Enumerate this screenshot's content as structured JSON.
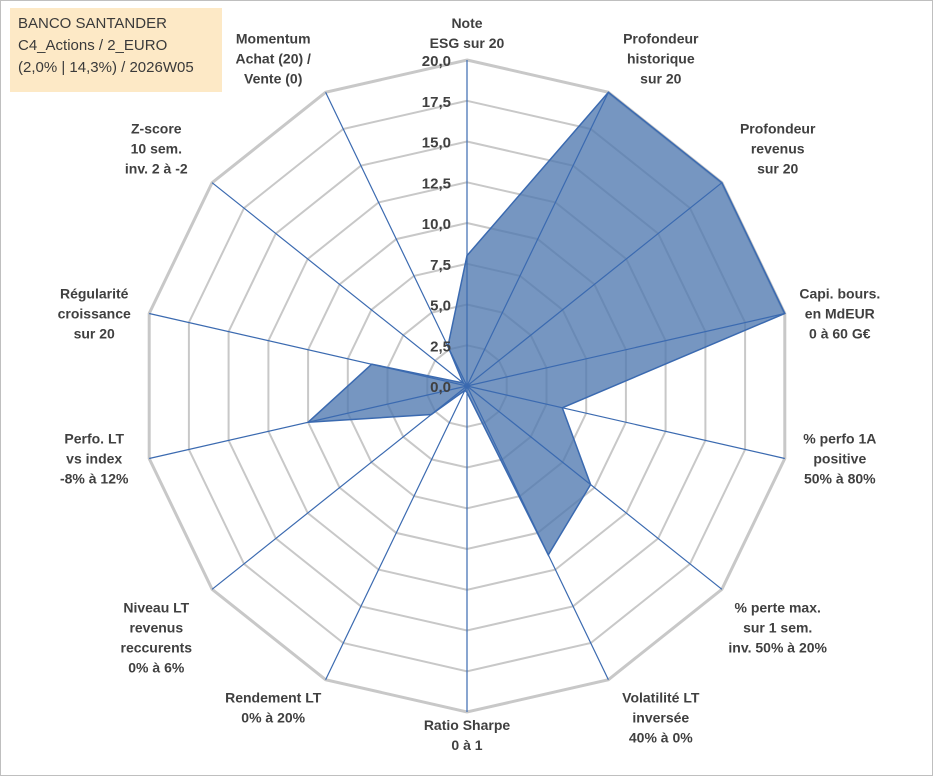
{
  "header": {
    "line1": "BANCO SANTANDER",
    "line2": "C4_Actions / 2_EURO",
    "line3": "(2,0% | 14,3%) / 2026W05"
  },
  "colors": {
    "fill": "#4f78b0",
    "stroke": "#3b6ab0",
    "grid": "#c8c8c8",
    "axis": "#3b6ab0",
    "label": "#404040",
    "title_bg": "#fde9c6"
  },
  "chart_data": {
    "type": "radar",
    "title": "BANCO SANTANDER",
    "rmin": 0,
    "rmax": 20,
    "tick_step": 2.5,
    "tick_labels": [
      "0,0",
      "2,5",
      "5,0",
      "7,5",
      "10,0",
      "12,5",
      "15,0",
      "17,5",
      "20,0"
    ],
    "axes": [
      [
        "Note",
        "ESG sur 20"
      ],
      [
        "Profondeur",
        "historique",
        "sur 20"
      ],
      [
        "Profondeur",
        "revenus",
        "sur 20"
      ],
      [
        "Capi. bours.",
        "en MdEUR",
        "0 à 60 G€"
      ],
      [
        "% perfo 1A",
        "positive",
        "50% à 80%"
      ],
      [
        "% perte max.",
        "sur 1 sem.",
        "inv. 50% à 20%"
      ],
      [
        "Volatilité LT",
        "inversée",
        "40% à 0%"
      ],
      [
        "Ratio Sharpe",
        "0 à 1"
      ],
      [
        "Rendement LT",
        "0% à 20%"
      ],
      [
        "Niveau LT",
        "revenus",
        "reccurents",
        "0% à 6%"
      ],
      [
        "Perfo. LT",
        "vs index",
        "-8% à 12%"
      ],
      [
        "Régularité",
        "croissance",
        "sur 20"
      ],
      [
        "Z-score",
        "10 sem.",
        "inv. 2 à -2"
      ],
      [
        "Momentum",
        "Achat (20) /",
        "Vente (0)"
      ]
    ],
    "series": [
      {
        "name": "BANCO SANTANDER",
        "values": [
          8.0,
          20.0,
          20.0,
          20.0,
          6.0,
          9.7,
          11.5,
          0.4,
          0.3,
          2.8,
          10.0,
          6.0,
          0.3,
          2.7
        ]
      }
    ]
  }
}
